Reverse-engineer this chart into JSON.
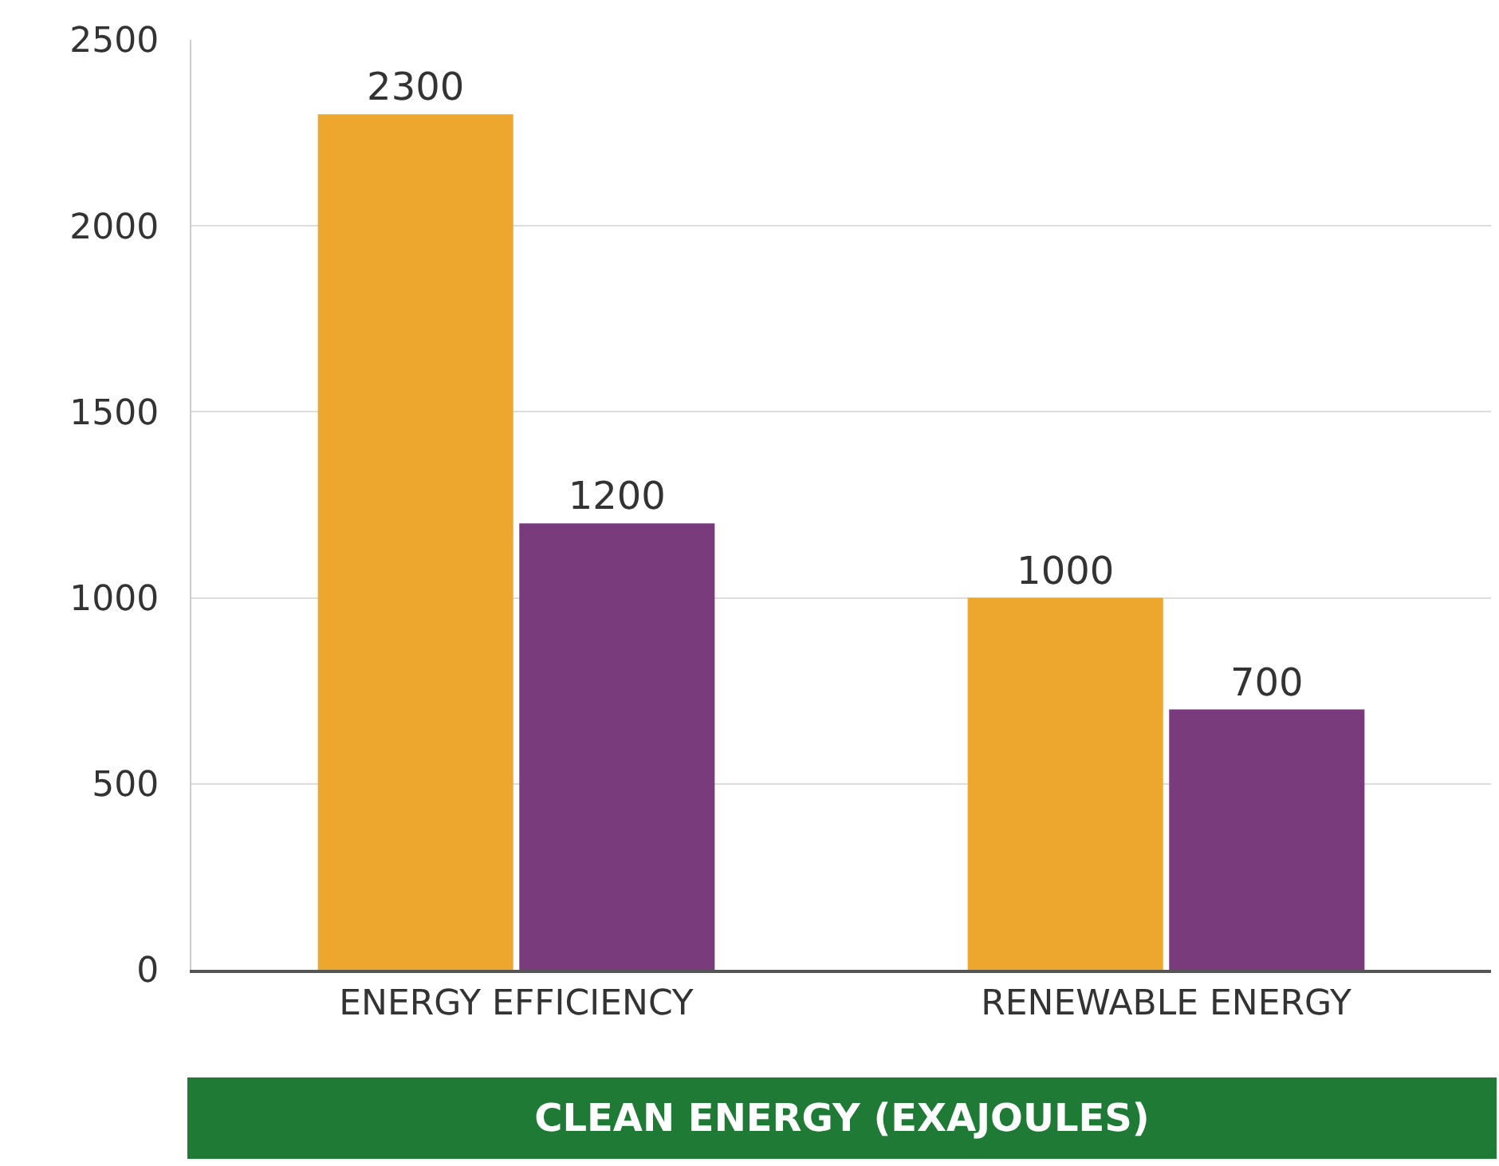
{
  "chart_data": {
    "type": "bar",
    "xlabel": "CLEAN ENERGY (EXAJOULES)",
    "categories": [
      "ENERGY EFFICIENCY",
      "RENEWABLE ENERGY"
    ],
    "series": [
      {
        "color": "#eda62e",
        "values": [
          2300,
          1000
        ]
      },
      {
        "color": "#7a3b7d",
        "values": [
          1200,
          700
        ]
      }
    ],
    "ylim": [
      0,
      2500
    ],
    "yticks": [
      0,
      500,
      1000,
      1500,
      2000,
      2500
    ],
    "grid": "y",
    "data_labels": true
  }
}
